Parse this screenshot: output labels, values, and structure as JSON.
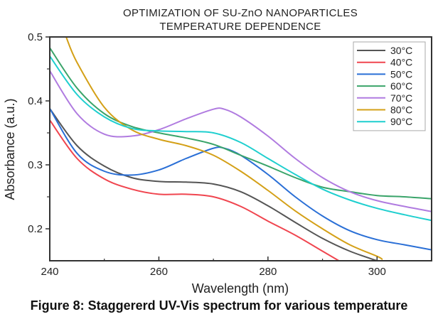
{
  "caption": "Figure 8: Staggererd UV-Vis spectrum for various temperature",
  "chart_data": {
    "type": "line",
    "title": [
      "OPTIMIZATION OF SU-ZnO NANOPARTICLES",
      "TEMPERATURE DEPENDENCE"
    ],
    "xlabel": "Wavelength (nm)",
    "ylabel": "Absorbance (a.u.)",
    "xlim": [
      240,
      310
    ],
    "ylim": [
      0.15,
      0.5
    ],
    "xticks": [
      240,
      260,
      280,
      300
    ],
    "xticklabels": [
      "240",
      "260",
      "280",
      "300"
    ],
    "xminor": [
      250,
      270,
      290
    ],
    "yticks": [
      0.2,
      0.3,
      0.4,
      0.5
    ],
    "yticklabels": [
      "0.2",
      "0.3",
      "0.4",
      "0.5"
    ],
    "yminor": [
      0.25,
      0.35,
      0.45
    ],
    "grid": false,
    "legend_position": "top-right",
    "series": [
      {
        "name": "30°C",
        "color": "#555555",
        "x": [
          240,
          245,
          250,
          255,
          260,
          265,
          270,
          275,
          280,
          285,
          290,
          295,
          300
        ],
        "y": [
          0.388,
          0.33,
          0.298,
          0.28,
          0.274,
          0.273,
          0.27,
          0.258,
          0.236,
          0.21,
          0.185,
          0.165,
          0.15
        ]
      },
      {
        "name": "40°C",
        "color": "#f0454f",
        "x": [
          240,
          245,
          250,
          255,
          260,
          265,
          270,
          275,
          280,
          285,
          290,
          293
        ],
        "y": [
          0.37,
          0.31,
          0.278,
          0.262,
          0.254,
          0.254,
          0.25,
          0.235,
          0.212,
          0.19,
          0.165,
          0.15
        ]
      },
      {
        "name": "50°C",
        "color": "#2a6fd6",
        "x": [
          240,
          245,
          250,
          255,
          260,
          265,
          270,
          272,
          275,
          280,
          285,
          290,
          295,
          300,
          305,
          310
        ],
        "y": [
          0.388,
          0.318,
          0.29,
          0.284,
          0.292,
          0.31,
          0.326,
          0.326,
          0.315,
          0.285,
          0.25,
          0.22,
          0.197,
          0.183,
          0.175,
          0.167
        ]
      },
      {
        "name": "60°C",
        "color": "#3aa46a",
        "x": [
          240,
          245,
          250,
          255,
          260,
          265,
          270,
          275,
          280,
          285,
          290,
          295,
          300,
          305,
          310
        ],
        "y": [
          0.483,
          0.42,
          0.38,
          0.36,
          0.35,
          0.342,
          0.332,
          0.315,
          0.298,
          0.28,
          0.265,
          0.258,
          0.252,
          0.25,
          0.247
        ]
      },
      {
        "name": "70°C",
        "color": "#b07be0",
        "x": [
          240,
          245,
          250,
          255,
          260,
          265,
          270,
          272,
          275,
          280,
          285,
          290,
          295,
          300,
          305,
          310
        ],
        "y": [
          0.447,
          0.38,
          0.348,
          0.345,
          0.355,
          0.372,
          0.387,
          0.387,
          0.375,
          0.345,
          0.31,
          0.28,
          0.258,
          0.244,
          0.235,
          0.227
        ]
      },
      {
        "name": "80°C",
        "color": "#d4a017",
        "x": [
          243,
          245,
          250,
          255,
          260,
          265,
          270,
          275,
          280,
          285,
          290,
          295,
          300,
          301
        ],
        "y": [
          0.5,
          0.46,
          0.39,
          0.355,
          0.34,
          0.33,
          0.315,
          0.29,
          0.26,
          0.228,
          0.2,
          0.175,
          0.157,
          0.152
        ]
      },
      {
        "name": "90°C",
        "color": "#1fcfcf",
        "x": [
          240,
          245,
          250,
          255,
          260,
          265,
          270,
          275,
          280,
          285,
          290,
          295,
          300,
          305,
          310
        ],
        "y": [
          0.47,
          0.41,
          0.375,
          0.357,
          0.353,
          0.352,
          0.35,
          0.335,
          0.31,
          0.285,
          0.262,
          0.245,
          0.232,
          0.222,
          0.213
        ]
      }
    ]
  }
}
